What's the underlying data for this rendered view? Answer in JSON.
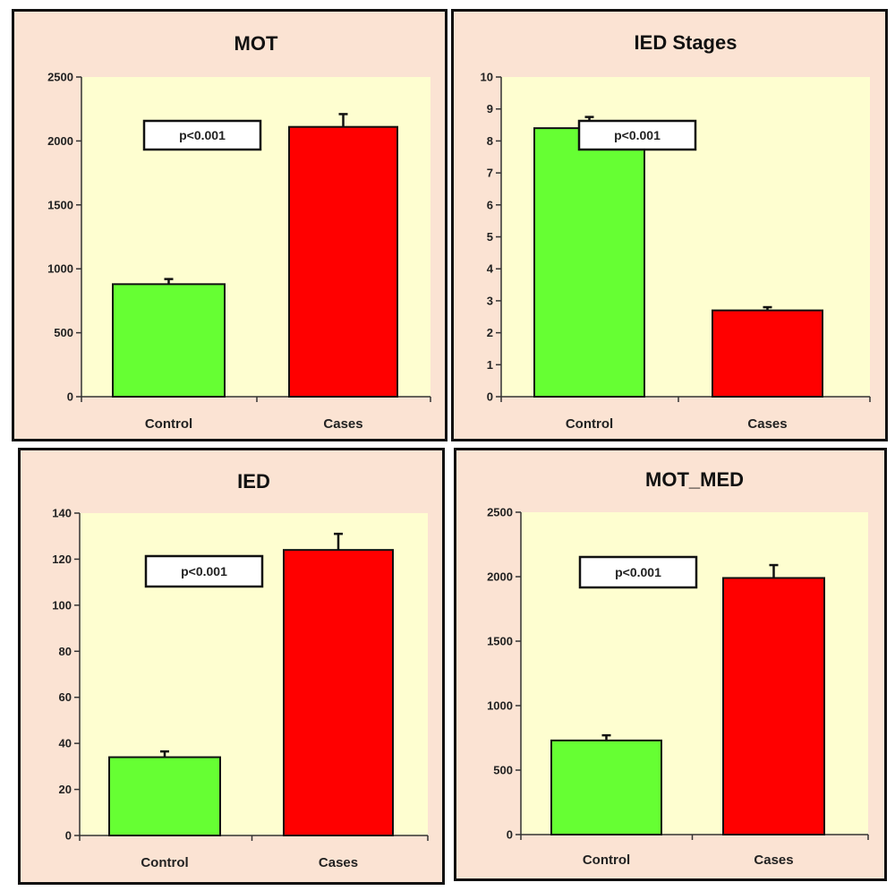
{
  "colors": {
    "panel_bg": "#fbe3d3",
    "plot_bg": "#fefed0",
    "control": "#66ff33",
    "cases": "#ff0000"
  },
  "chart_data": [
    {
      "type": "bar",
      "title": "MOT",
      "categories": [
        "Control",
        "Cases"
      ],
      "values": [
        880,
        2110
      ],
      "errors": [
        40,
        100
      ],
      "ylim": [
        0,
        2500
      ],
      "yticks": [
        0,
        500,
        1000,
        1500,
        2000,
        2500
      ],
      "annotation": "p<0.001",
      "grid": false
    },
    {
      "type": "bar",
      "title": "IED Stages",
      "categories": [
        "Control",
        "Cases"
      ],
      "values": [
        8.4,
        2.7
      ],
      "errors": [
        0.35,
        0.1
      ],
      "ylim": [
        0,
        10
      ],
      "yticks": [
        0,
        1,
        2,
        3,
        4,
        5,
        6,
        7,
        8,
        9,
        10
      ],
      "annotation": "p<0.001",
      "grid": false
    },
    {
      "type": "bar",
      "title": "IED",
      "categories": [
        "Control",
        "Cases"
      ],
      "values": [
        34,
        124
      ],
      "errors": [
        2.5,
        7
      ],
      "ylim": [
        0,
        140
      ],
      "yticks": [
        0,
        20,
        40,
        60,
        80,
        100,
        120,
        140
      ],
      "annotation": "p<0.001",
      "grid": false
    },
    {
      "type": "bar",
      "title": "MOT_MED",
      "categories": [
        "Control",
        "Cases"
      ],
      "values": [
        730,
        1990
      ],
      "errors": [
        40,
        100
      ],
      "ylim": [
        0,
        2500
      ],
      "yticks": [
        0,
        500,
        1000,
        1500,
        2000,
        2500
      ],
      "annotation": "p<0.001",
      "grid": false
    }
  ]
}
